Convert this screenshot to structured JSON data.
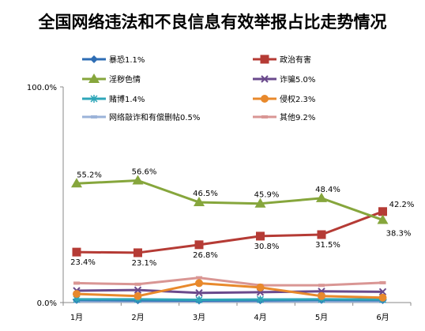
{
  "chart_data": {
    "type": "line",
    "title": "全国网络违法和不良信息有效举报占比走势情况",
    "categories": [
      "1月",
      "2月",
      "3月",
      "4月",
      "5月",
      "6月"
    ],
    "ylim": [
      0,
      100
    ],
    "y_tick_labels": [
      "0.0%",
      "100.0%"
    ],
    "grid": false,
    "legend_position": "top",
    "series": [
      {
        "name": "暴恐1.1%",
        "color": "#2e6db4",
        "marker": "diamond",
        "values": [
          1.2,
          1.0,
          0.9,
          1.0,
          1.2,
          1.1
        ],
        "labels": []
      },
      {
        "name": "政治有害",
        "color": "#b53b35",
        "marker": "square",
        "values": [
          23.4,
          23.1,
          26.8,
          30.8,
          31.5,
          42.2
        ],
        "labels": [
          "23.4%",
          "23.1%",
          "26.8%",
          "30.8%",
          "31.5%",
          "42.2%"
        ]
      },
      {
        "name": "淫秽色情",
        "color": "#86a63c",
        "marker": "triangle",
        "values": [
          55.2,
          56.6,
          46.5,
          45.9,
          48.4,
          38.3
        ],
        "labels": [
          "55.2%",
          "56.6%",
          "46.5%",
          "45.9%",
          "48.4%",
          "38.3%"
        ]
      },
      {
        "name": "诈骗5.0%",
        "color": "#6a4a8c",
        "marker": "x",
        "values": [
          5.5,
          5.8,
          4.5,
          4.8,
          5.2,
          5.0
        ],
        "labels": []
      },
      {
        "name": "赌博1.4%",
        "color": "#2ea6b8",
        "marker": "star",
        "values": [
          1.5,
          1.5,
          1.3,
          1.4,
          1.5,
          1.4
        ],
        "labels": []
      },
      {
        "name": "侵权2.3%",
        "color": "#e8892c",
        "marker": "circle",
        "values": [
          4.0,
          3.0,
          9.0,
          7.0,
          3.0,
          2.3
        ],
        "labels": []
      },
      {
        "name": "网络敲诈和有偿删帖0.5%",
        "color": "#9bb3d9",
        "marker": "bar",
        "values": [
          0.5,
          0.5,
          0.5,
          0.5,
          0.5,
          0.5
        ],
        "labels": []
      },
      {
        "name": "其他9.2%",
        "color": "#d99694",
        "marker": "bar",
        "values": [
          9.0,
          8.5,
          11.5,
          8.0,
          8.0,
          9.2
        ],
        "labels": []
      }
    ]
  }
}
